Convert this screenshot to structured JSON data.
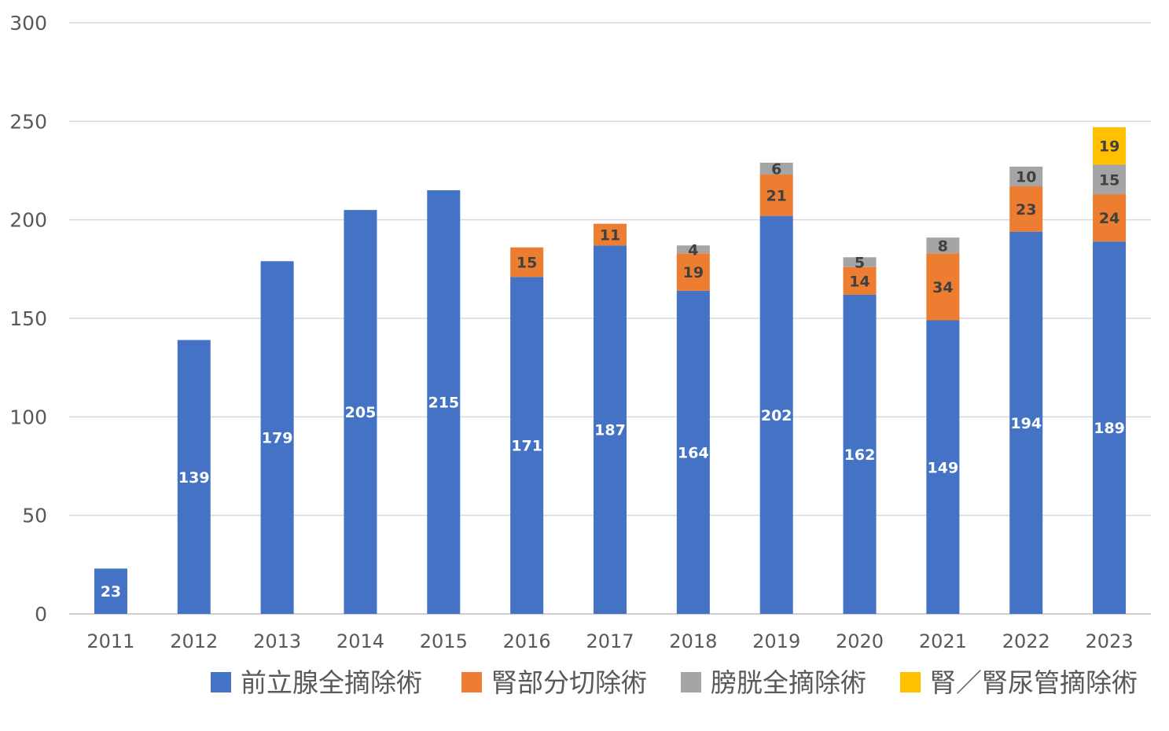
{
  "chart_data": {
    "type": "bar",
    "stacked": true,
    "categories": [
      "2011",
      "2012",
      "2013",
      "2014",
      "2015",
      "2016",
      "2017",
      "2018",
      "2019",
      "2020",
      "2021",
      "2022",
      "2023"
    ],
    "series": [
      {
        "name": "前立腺全摘除術",
        "color": "#4472C4",
        "label_color": "#FFFFFF",
        "values": [
          23,
          139,
          179,
          205,
          215,
          171,
          187,
          164,
          202,
          162,
          149,
          194,
          189
        ]
      },
      {
        "name": "腎部分切除術",
        "color": "#ED7D31",
        "label_color": "#404040",
        "values": [
          0,
          0,
          0,
          0,
          0,
          15,
          11,
          19,
          21,
          14,
          34,
          23,
          24
        ]
      },
      {
        "name": "膀胱全摘除術",
        "color": "#A5A5A5",
        "label_color": "#404040",
        "values": [
          0,
          0,
          0,
          0,
          0,
          0,
          0,
          4,
          6,
          5,
          8,
          10,
          15
        ]
      },
      {
        "name": "腎／腎尿管摘除術",
        "color": "#FFC000",
        "label_color": "#404040",
        "values": [
          0,
          0,
          0,
          0,
          0,
          0,
          0,
          0,
          0,
          0,
          0,
          0,
          19
        ]
      }
    ],
    "ylim": [
      0,
      300
    ],
    "yticks": [
      0,
      50,
      100,
      150,
      200,
      250,
      300
    ],
    "grid": true,
    "legend_position": "bottom",
    "data_labels": true
  }
}
